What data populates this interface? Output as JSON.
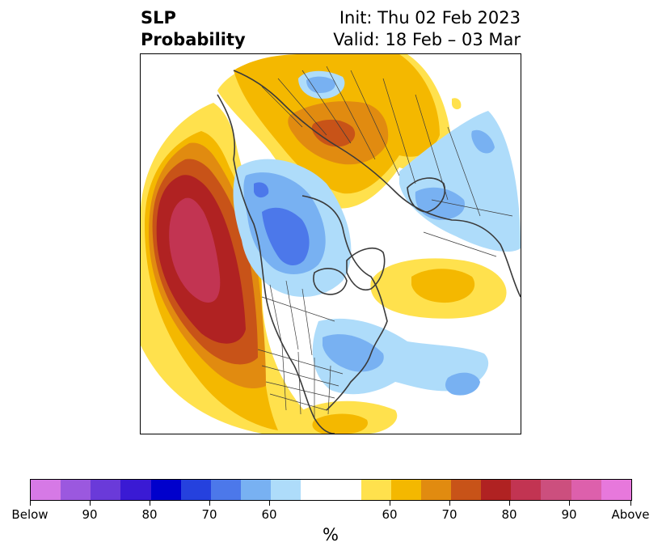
{
  "title": {
    "left_line1": "SLP",
    "left_line2": "Probability",
    "right_line1": "Init: Thu 02 Feb 2023",
    "right_line2": "Valid: 18 Feb – 03 Mar"
  },
  "colorbar": {
    "unit": "%",
    "segments": [
      "#d679e6",
      "#9b58df",
      "#6a3ad9",
      "#3a1ad4",
      "#0000cc",
      "#2541de",
      "#4c78ea",
      "#78b1f2",
      "#aedcfa",
      "#ffffff",
      "#ffffff",
      "#ffe14d",
      "#f4b800",
      "#e18b10",
      "#c85318",
      "#b02222",
      "#c23452",
      "#cc4f7e",
      "#dd60ac",
      "#e778dc"
    ],
    "tick_labels": [
      "Below",
      "90",
      "80",
      "70",
      "60",
      "60",
      "70",
      "80",
      "90",
      "Above"
    ]
  },
  "map": {
    "colors": {
      "above_60": "#ffe14d",
      "above_65": "#f4b800",
      "above_70": "#e18b10",
      "above_75": "#c85318",
      "above_80": "#b02222",
      "above_85": "#c23452",
      "below_60": "#aedcfa",
      "below_65": "#78b1f2",
      "below_70": "#4c78ea",
      "coast": "#3a3a3a"
    }
  }
}
